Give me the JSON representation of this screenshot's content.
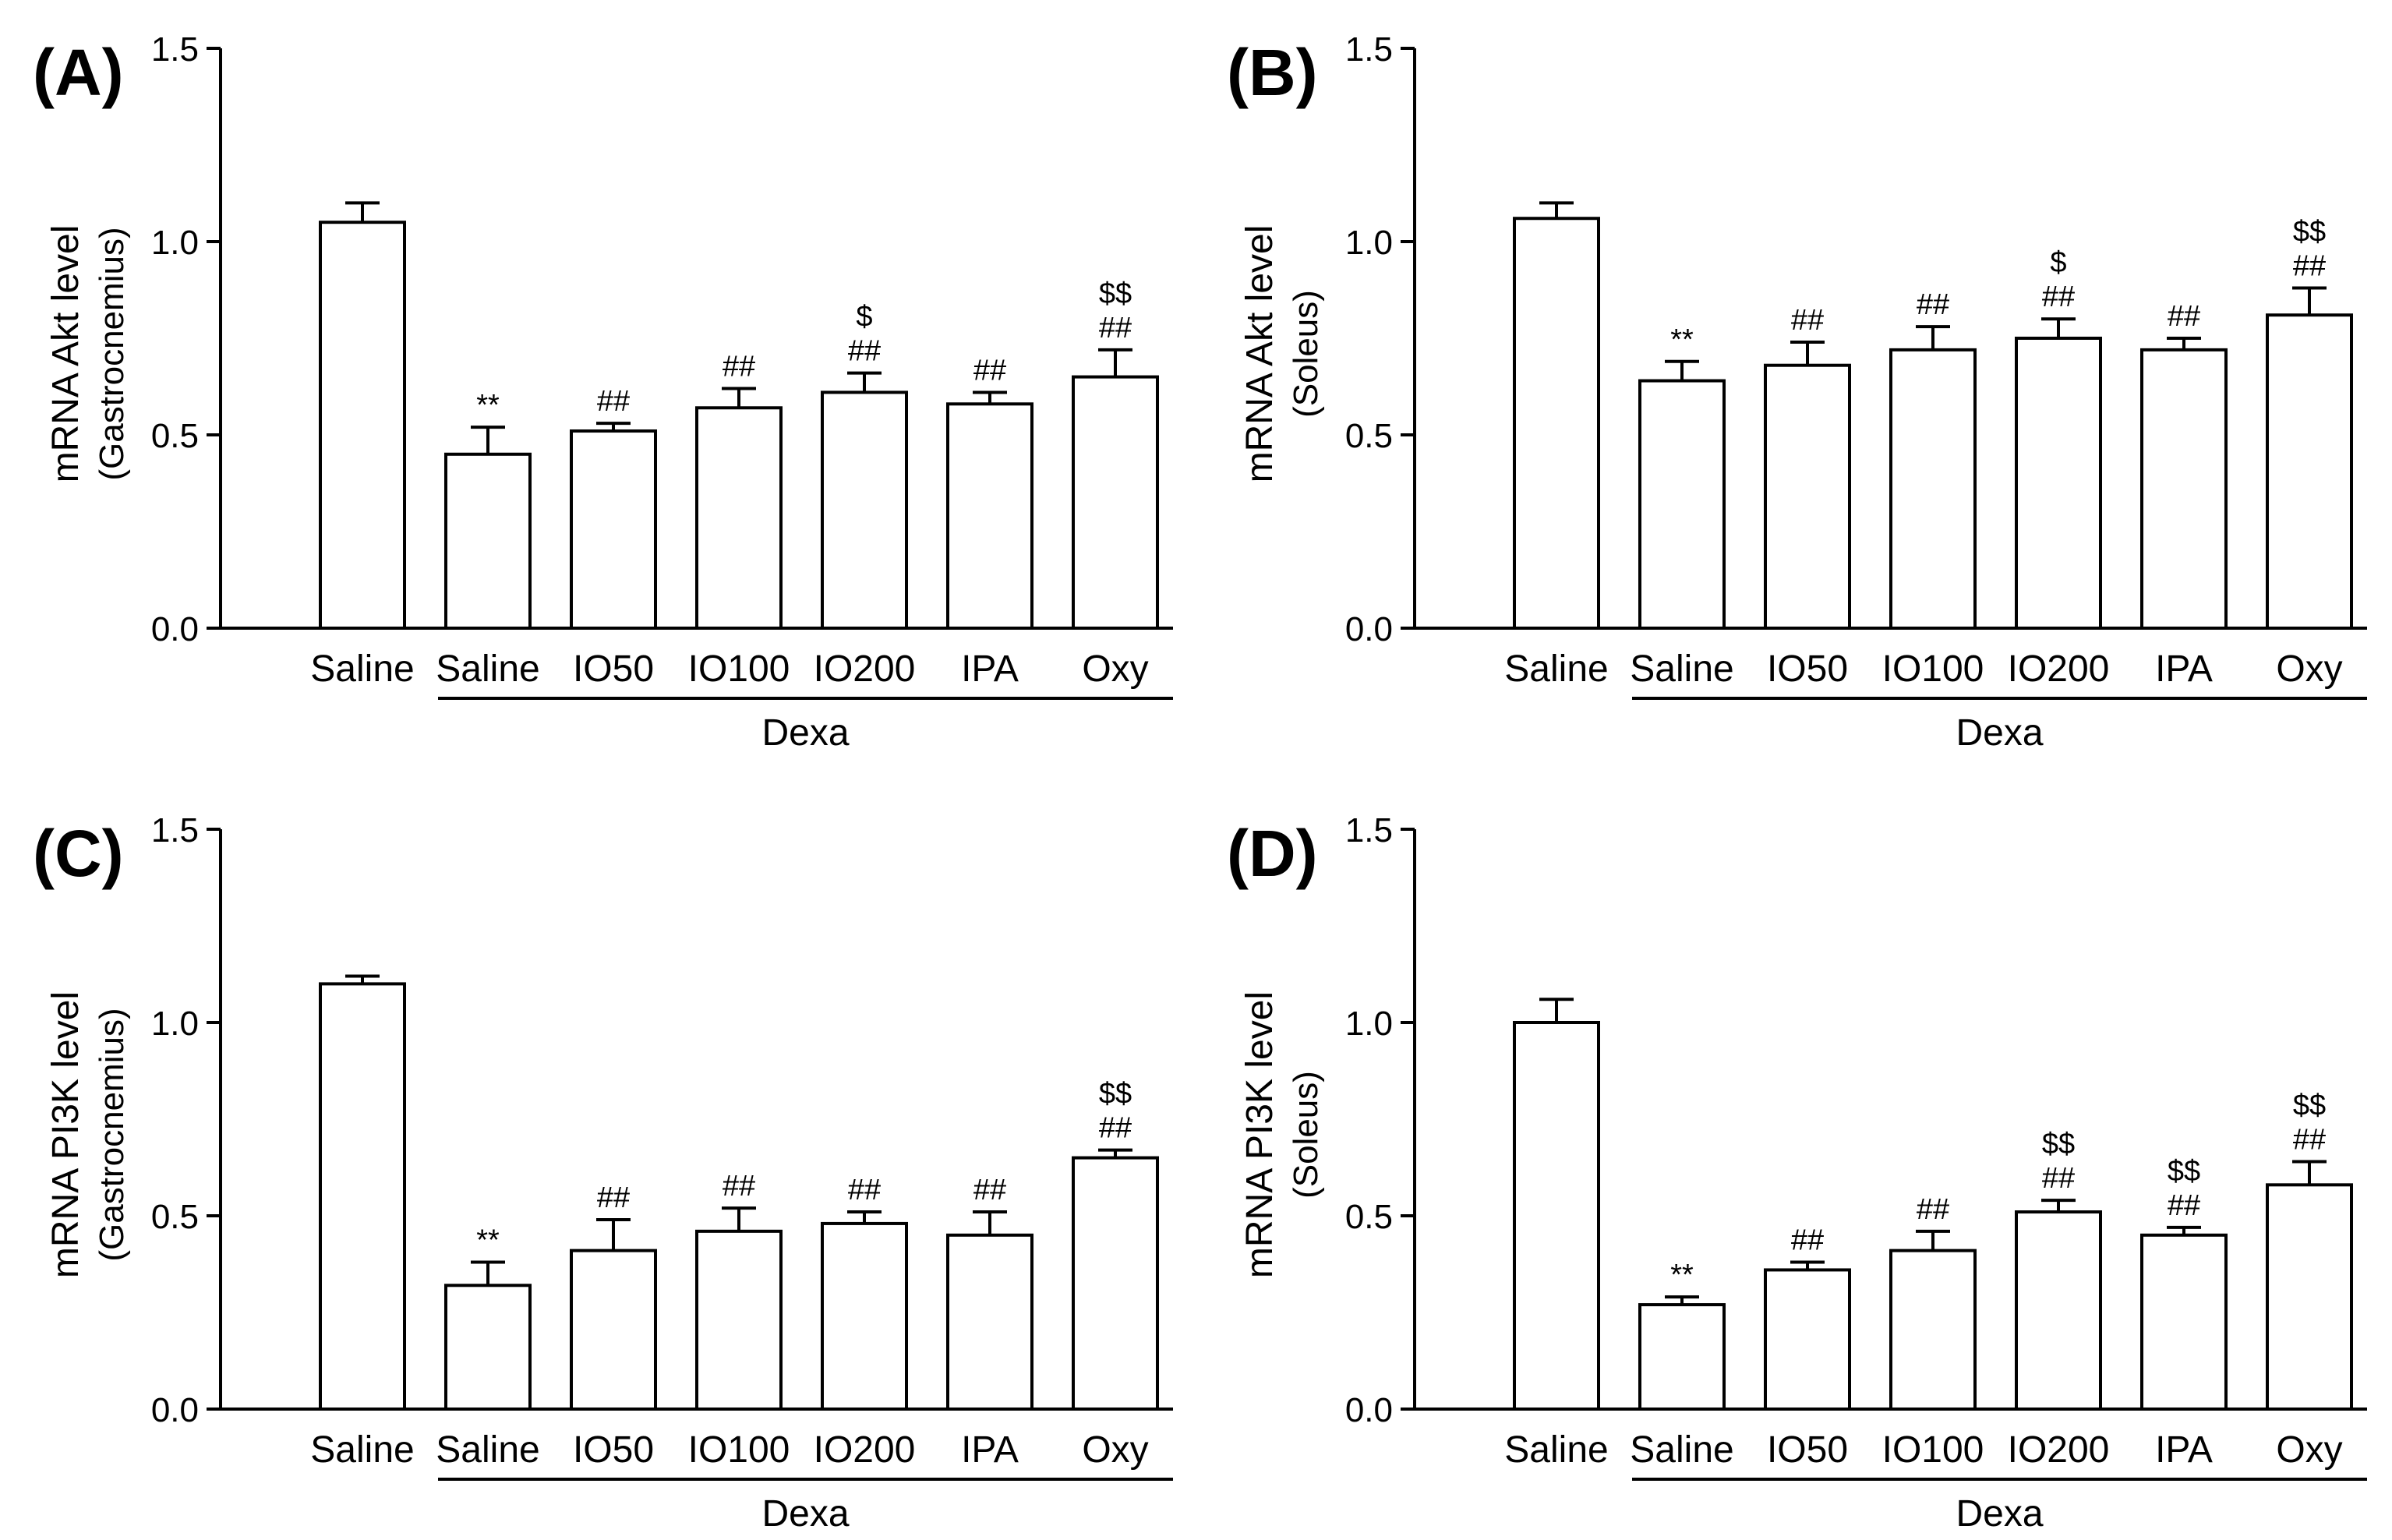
{
  "chart_data": [
    {
      "type": "bar",
      "panel_label": "(A)",
      "ylabel": "mRNA Akt level",
      "ylabel_sub": "(Gastrocnemius)",
      "ylim": [
        0,
        1.5
      ],
      "yticks": [
        "0.0",
        "0.5",
        "1.0",
        "1.5"
      ],
      "categories": [
        "Saline",
        "Saline",
        "IO50",
        "IO100",
        "IO200",
        "IPA",
        "Oxy"
      ],
      "values": [
        1.05,
        0.45,
        0.51,
        0.57,
        0.61,
        0.58,
        0.65
      ],
      "errors": [
        0.05,
        0.07,
        0.02,
        0.05,
        0.05,
        0.03,
        0.07
      ],
      "annotations": [
        [],
        [
          "**"
        ],
        [
          "##"
        ],
        [
          "##"
        ],
        [
          "##",
          "$"
        ],
        [
          "##"
        ],
        [
          "##",
          "$$"
        ]
      ],
      "group_label": "Dexa"
    },
    {
      "type": "bar",
      "panel_label": "(B)",
      "ylabel": "mRNA Akt level",
      "ylabel_sub": "(Soleus)",
      "ylim": [
        0,
        1.5
      ],
      "yticks": [
        "0.0",
        "0.5",
        "1.0",
        "1.5"
      ],
      "categories": [
        "Saline",
        "Saline",
        "IO50",
        "IO100",
        "IO200",
        "IPA",
        "Oxy"
      ],
      "values": [
        1.06,
        0.64,
        0.68,
        0.72,
        0.75,
        0.72,
        0.81
      ],
      "errors": [
        0.04,
        0.05,
        0.06,
        0.06,
        0.05,
        0.03,
        0.07
      ],
      "annotations": [
        [],
        [
          "**"
        ],
        [
          "##"
        ],
        [
          "##"
        ],
        [
          "##",
          "$"
        ],
        [
          "##"
        ],
        [
          "##",
          "$$"
        ]
      ],
      "group_label": "Dexa"
    },
    {
      "type": "bar",
      "panel_label": "(C)",
      "ylabel": "mRNA PI3K level",
      "ylabel_sub": "(Gastrocnemius)",
      "ylim": [
        0,
        1.5
      ],
      "yticks": [
        "0.0",
        "0.5",
        "1.0",
        "1.5"
      ],
      "categories": [
        "Saline",
        "Saline",
        "IO50",
        "IO100",
        "IO200",
        "IPA",
        "Oxy"
      ],
      "values": [
        1.1,
        0.32,
        0.41,
        0.46,
        0.48,
        0.45,
        0.65
      ],
      "errors": [
        0.02,
        0.06,
        0.08,
        0.06,
        0.03,
        0.06,
        0.02
      ],
      "annotations": [
        [],
        [
          "**"
        ],
        [
          "##"
        ],
        [
          "##"
        ],
        [
          "##"
        ],
        [
          "##"
        ],
        [
          "##",
          "$$"
        ]
      ],
      "group_label": "Dexa"
    },
    {
      "type": "bar",
      "panel_label": "(D)",
      "ylabel": "mRNA PI3K level",
      "ylabel_sub": "(Soleus)",
      "ylim": [
        0,
        1.5
      ],
      "yticks": [
        "0.0",
        "0.5",
        "1.0",
        "1.5"
      ],
      "categories": [
        "Saline",
        "Saline",
        "IO50",
        "IO100",
        "IO200",
        "IPA",
        "Oxy"
      ],
      "values": [
        1.0,
        0.27,
        0.36,
        0.41,
        0.51,
        0.45,
        0.58
      ],
      "errors": [
        0.06,
        0.02,
        0.02,
        0.05,
        0.03,
        0.02,
        0.06
      ],
      "annotations": [
        [],
        [
          "**"
        ],
        [
          "##"
        ],
        [
          "##"
        ],
        [
          "##",
          "$$"
        ],
        [
          "##",
          "$$"
        ],
        [
          "##",
          "$$"
        ]
      ],
      "group_label": "Dexa"
    }
  ]
}
